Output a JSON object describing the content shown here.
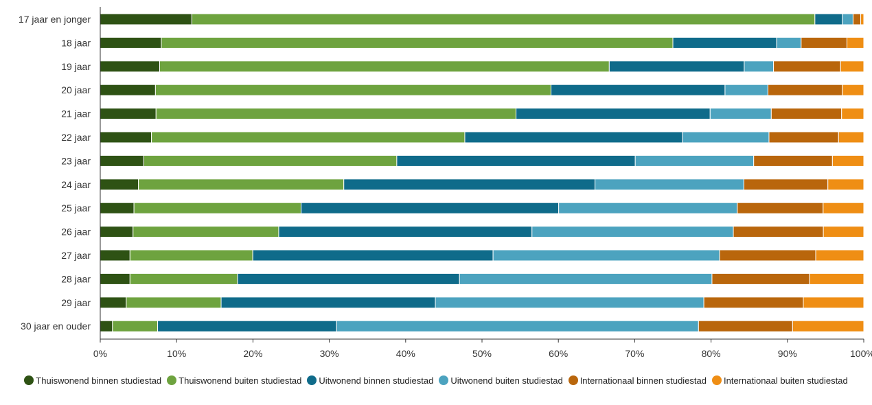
{
  "chart_data": {
    "type": "bar",
    "orientation": "horizontal",
    "stacked": true,
    "percent_stacked": true,
    "categories": [
      "17 jaar en jonger",
      "18 jaar",
      "19 jaar",
      "20 jaar",
      "21 jaar",
      "22 jaar",
      "23 jaar",
      "24 jaar",
      "25 jaar",
      "26 jaar",
      "27 jaar",
      "28 jaar",
      "29 jaar",
      "30 jaar en ouder"
    ],
    "series": [
      {
        "name": "Thuiswonend binnen studiestad",
        "color": "#2e5214",
        "values": [
          12,
          8,
          7.7,
          7.2,
          7.3,
          6.7,
          5.7,
          5,
          4.4,
          4.3,
          3.9,
          3.9,
          3.4,
          1.6
        ]
      },
      {
        "name": "Thuiswonend buiten studiestad",
        "color": "#6ea33f",
        "values": [
          81.6,
          67,
          58.3,
          51.6,
          47.1,
          41,
          33.1,
          26.9,
          21.8,
          19.1,
          16.1,
          14.1,
          12.4,
          5.9
        ]
      },
      {
        "name": "Uitwonend binnen studiestad",
        "color": "#0f6b8a",
        "values": [
          3.6,
          13.6,
          17.5,
          22.7,
          25.4,
          28.5,
          31.2,
          32.9,
          33.6,
          33.2,
          31.5,
          29.1,
          28,
          23.4
        ]
      },
      {
        "name": "Uitwonend buiten studiestad",
        "color": "#4ca3bf",
        "values": [
          1.4,
          3.2,
          3.8,
          5.6,
          8,
          11.3,
          15.5,
          19.5,
          23.3,
          26.4,
          29.7,
          33.1,
          35.1,
          47.3
        ]
      },
      {
        "name": "Internationaal binnen studiestad",
        "color": "#b9660c",
        "values": [
          1,
          6,
          8.7,
          9.7,
          9.2,
          9.1,
          10.3,
          11,
          11.2,
          11.8,
          12.6,
          12.8,
          13,
          12.3
        ]
      },
      {
        "name": "Internationaal buiten studiestad",
        "color": "#ef8e14",
        "values": [
          0.4,
          2.2,
          3,
          2.8,
          2.9,
          3.3,
          4.1,
          4.7,
          5.3,
          5.3,
          6.3,
          7.1,
          7.9,
          9.3
        ]
      }
    ],
    "x_ticks": [
      "0%",
      "10%",
      "20%",
      "30%",
      "40%",
      "50%",
      "60%",
      "70%",
      "80%",
      "90%",
      "100%"
    ],
    "xlim": [
      0,
      100
    ],
    "grid": false,
    "legend_position": "bottom"
  }
}
